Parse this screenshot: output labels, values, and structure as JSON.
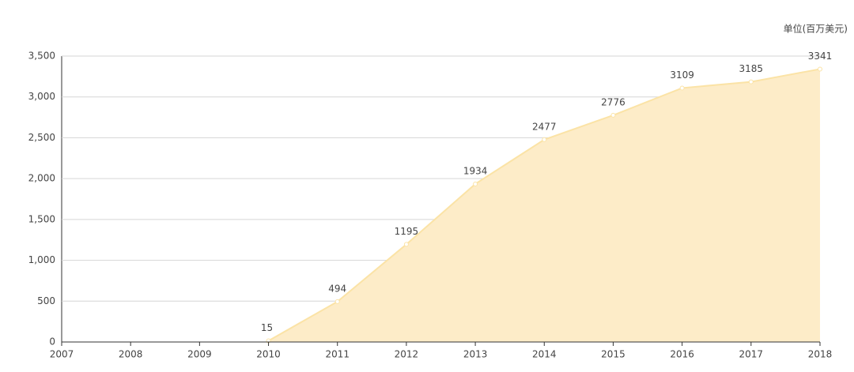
{
  "chart_data": {
    "type": "area",
    "y_label": "单位(百万美元)",
    "x": [
      2010,
      2011,
      2012,
      2013,
      2014,
      2015,
      2016,
      2017,
      2018
    ],
    "values": [
      15,
      494,
      1195,
      1934,
      2477,
      2776,
      3109,
      3185,
      3341
    ],
    "color": "#fbe3a6",
    "fill_color": "#fdecc8",
    "xlim": [
      2007,
      2018
    ],
    "xticks": [
      2007,
      2008,
      2009,
      2010,
      2011,
      2012,
      2013,
      2014,
      2015,
      2016,
      2017,
      2018
    ],
    "ylim": [
      0,
      3500
    ],
    "yticks": [
      0,
      500,
      {
        "value": 1000,
        "label": "1,000"
      },
      {
        "value": 1500,
        "label": "1,500"
      },
      {
        "value": 2000,
        "label": "2,000"
      },
      {
        "value": 2500,
        "label": "2,500"
      },
      {
        "value": 3000,
        "label": "3,000"
      },
      {
        "value": 3500,
        "label": "3,500"
      }
    ],
    "grid": true
  }
}
